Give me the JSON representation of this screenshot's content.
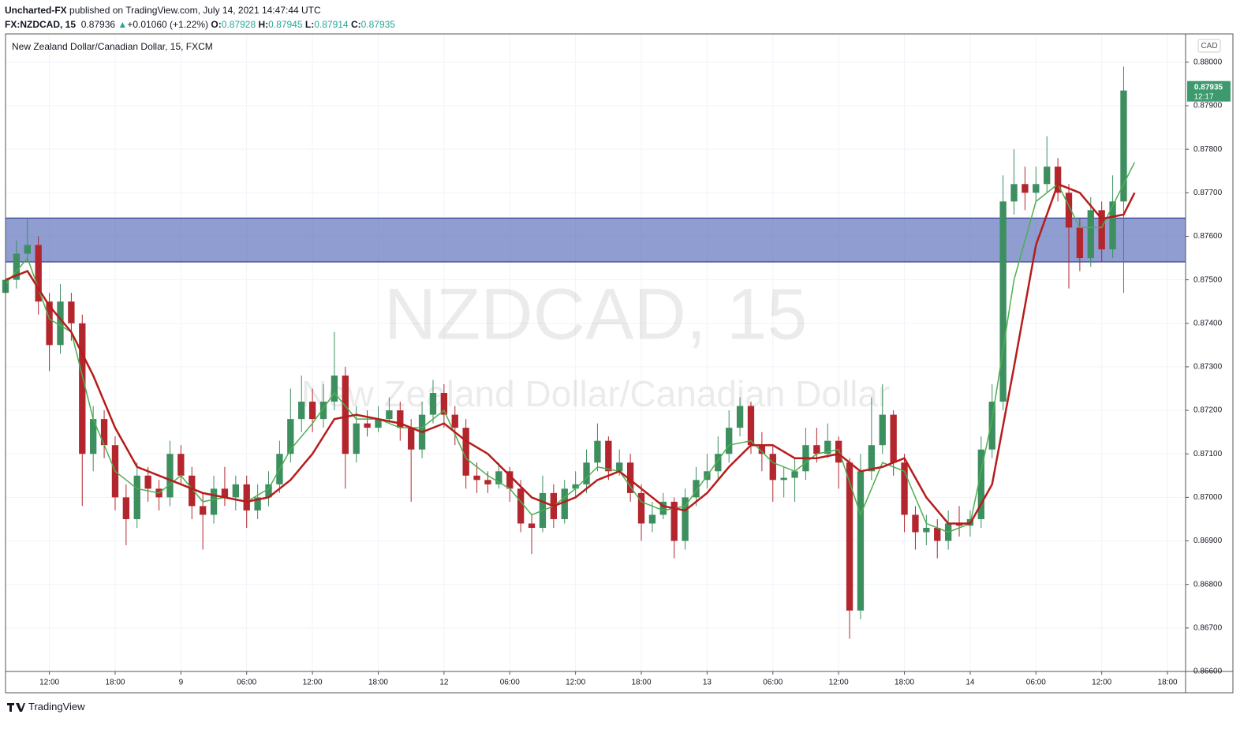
{
  "header": {
    "author": "Uncharted-FX",
    "published": " published on TradingView.com, July 14, 2021 14:47:44 UTC",
    "symbol": "FX:NZDCAD, 15",
    "last": "0.87936",
    "change": "+0.01060 (+1.22%)",
    "o_label": "O:",
    "open": "0.87928",
    "h_label": "H:",
    "high": "0.87945",
    "l_label": "L:",
    "low": "0.87914",
    "c_label": "C:",
    "close": "0.87935"
  },
  "footer": {
    "brand": "TradingView"
  },
  "chart_data": {
    "type": "candlestick",
    "title": "New Zealand Dollar/Canadian Dollar, 15, FXCM",
    "watermark": "NZDCAD, 15",
    "watermark_name": "New Zealand Dollar/Canadian Dollar",
    "currency": "CAD",
    "countdown": "12:17",
    "up_color": "#3d8f5f",
    "down_color": "#b3262d",
    "grid": true,
    "xlim": [
      -16,
      91.65
    ],
    "ylim": [
      0.866,
      0.88065
    ],
    "xticks": [
      {
        "value": -12,
        "label": "12:00"
      },
      {
        "value": -6,
        "label": "18:00"
      },
      {
        "value": 0,
        "label": "9"
      },
      {
        "value": 6,
        "label": "06:00"
      },
      {
        "value": 12,
        "label": "12:00"
      },
      {
        "value": 18,
        "label": "18:00"
      },
      {
        "value": 24,
        "label": "12"
      },
      {
        "value": 30,
        "label": "06:00"
      },
      {
        "value": 36,
        "label": "12:00"
      },
      {
        "value": 42,
        "label": "18:00"
      },
      {
        "value": 48,
        "label": "13"
      },
      {
        "value": 54,
        "label": "06:00"
      },
      {
        "value": 60,
        "label": "12:00"
      },
      {
        "value": 66,
        "label": "18:00"
      },
      {
        "value": 72,
        "label": "14"
      },
      {
        "value": 78,
        "label": "06:00"
      },
      {
        "value": 84,
        "label": "12:00"
      },
      {
        "value": 90,
        "label": "18:00"
      }
    ],
    "yticks": [
      {
        "value": 0.88,
        "label": "0.88000"
      },
      {
        "value": 0.879,
        "label": "0.87900"
      },
      {
        "value": 0.878,
        "label": "0.87800"
      },
      {
        "value": 0.877,
        "label": "0.87700"
      },
      {
        "value": 0.876,
        "label": "0.87600"
      },
      {
        "value": 0.875,
        "label": "0.87500"
      },
      {
        "value": 0.874,
        "label": "0.87400"
      },
      {
        "value": 0.873,
        "label": "0.87300"
      },
      {
        "value": 0.872,
        "label": "0.87200"
      },
      {
        "value": 0.871,
        "label": "0.87100"
      },
      {
        "value": 0.87,
        "label": "0.87000"
      },
      {
        "value": 0.869,
        "label": "0.86900"
      },
      {
        "value": 0.868,
        "label": "0.86800"
      },
      {
        "value": 0.867,
        "label": "0.86700"
      },
      {
        "value": 0.866,
        "label": "0.86600"
      }
    ],
    "zone": {
      "from": 0.87541,
      "to": 0.87642,
      "color": "#4a61b5"
    },
    "candles": [
      [
        -16,
        0.8747,
        0.8753,
        0.8744,
        0.875
      ],
      [
        -15,
        0.875,
        0.8759,
        0.8748,
        0.8756
      ],
      [
        -14,
        0.8756,
        0.87642,
        0.8754,
        0.8758
      ],
      [
        -13,
        0.8758,
        0.876,
        0.8742,
        0.8745
      ],
      [
        -12,
        0.8745,
        0.8747,
        0.8729,
        0.8735
      ],
      [
        -11,
        0.8735,
        0.8749,
        0.8733,
        0.8745
      ],
      [
        -10,
        0.8745,
        0.8747,
        0.8736,
        0.874
      ],
      [
        -9,
        0.874,
        0.8742,
        0.8698,
        0.871
      ],
      [
        -8,
        0.871,
        0.8721,
        0.8706,
        0.8718
      ],
      [
        -7,
        0.8718,
        0.872,
        0.8709,
        0.8712
      ],
      [
        -6,
        0.8712,
        0.8714,
        0.8697,
        0.87
      ],
      [
        -5,
        0.87,
        0.8703,
        0.8689,
        0.8695
      ],
      [
        -4,
        0.8695,
        0.8708,
        0.8693,
        0.8705
      ],
      [
        -3,
        0.8705,
        0.8707,
        0.8699,
        0.8702
      ],
      [
        -2,
        0.8702,
        0.8704,
        0.8697,
        0.87
      ],
      [
        -1,
        0.87,
        0.8713,
        0.8698,
        0.871
      ],
      [
        0,
        0.871,
        0.8712,
        0.8703,
        0.8705
      ],
      [
        1,
        0.8705,
        0.8707,
        0.8695,
        0.8698
      ],
      [
        2,
        0.8698,
        0.8701,
        0.8688,
        0.8696
      ],
      [
        3,
        0.8696,
        0.8705,
        0.8694,
        0.8702
      ],
      [
        4,
        0.8702,
        0.8707,
        0.8698,
        0.87
      ],
      [
        5,
        0.87,
        0.8705,
        0.8697,
        0.8703
      ],
      [
        6,
        0.8703,
        0.8705,
        0.8693,
        0.8697
      ],
      [
        7,
        0.8697,
        0.8703,
        0.8695,
        0.87
      ],
      [
        8,
        0.87,
        0.8706,
        0.8698,
        0.8703
      ],
      [
        9,
        0.8703,
        0.8713,
        0.8701,
        0.871
      ],
      [
        10,
        0.871,
        0.8725,
        0.8708,
        0.8718
      ],
      [
        11,
        0.8718,
        0.8728,
        0.8715,
        0.8722
      ],
      [
        12,
        0.8722,
        0.8725,
        0.8715,
        0.8718
      ],
      [
        13,
        0.8718,
        0.8726,
        0.8716,
        0.8722
      ],
      [
        14,
        0.8722,
        0.8738,
        0.872,
        0.8728
      ],
      [
        15,
        0.8728,
        0.873,
        0.8702,
        0.871
      ],
      [
        16,
        0.871,
        0.8721,
        0.8708,
        0.8717
      ],
      [
        17,
        0.8717,
        0.872,
        0.8714,
        0.8716
      ],
      [
        18,
        0.8716,
        0.8721,
        0.8715,
        0.8718
      ],
      [
        19,
        0.8718,
        0.8723,
        0.8717,
        0.872
      ],
      [
        20,
        0.872,
        0.8722,
        0.8713,
        0.8716
      ],
      [
        21,
        0.8716,
        0.8718,
        0.8699,
        0.8711
      ],
      [
        22,
        0.8711,
        0.8722,
        0.8709,
        0.8719
      ],
      [
        23,
        0.8719,
        0.8727,
        0.8717,
        0.8724
      ],
      [
        24,
        0.8724,
        0.8726,
        0.8716,
        0.8719
      ],
      [
        25,
        0.8719,
        0.8721,
        0.8712,
        0.8716
      ],
      [
        26,
        0.8716,
        0.8718,
        0.8702,
        0.8705
      ],
      [
        27,
        0.8705,
        0.8708,
        0.8701,
        0.8704
      ],
      [
        28,
        0.8704,
        0.8706,
        0.8701,
        0.8703
      ],
      [
        29,
        0.8703,
        0.8708,
        0.8702,
        0.8706
      ],
      [
        30,
        0.8706,
        0.8707,
        0.8699,
        0.8702
      ],
      [
        31,
        0.8702,
        0.8704,
        0.8692,
        0.8694
      ],
      [
        32,
        0.8694,
        0.8696,
        0.8687,
        0.8693
      ],
      [
        33,
        0.8693,
        0.8705,
        0.8692,
        0.8701
      ],
      [
        34,
        0.8701,
        0.8703,
        0.8693,
        0.8695
      ],
      [
        35,
        0.8695,
        0.8704,
        0.8694,
        0.8702
      ],
      [
        36,
        0.8702,
        0.8706,
        0.87,
        0.8703
      ],
      [
        37,
        0.8703,
        0.8711,
        0.8701,
        0.8708
      ],
      [
        38,
        0.8708,
        0.8717,
        0.8706,
        0.8713
      ],
      [
        39,
        0.8713,
        0.8714,
        0.8704,
        0.8706
      ],
      [
        40,
        0.8706,
        0.8711,
        0.8705,
        0.8708
      ],
      [
        41,
        0.8708,
        0.871,
        0.8699,
        0.8701
      ],
      [
        42,
        0.8701,
        0.8703,
        0.869,
        0.8694
      ],
      [
        43,
        0.8694,
        0.8699,
        0.8692,
        0.8696
      ],
      [
        44,
        0.8696,
        0.8701,
        0.8695,
        0.8699
      ],
      [
        45,
        0.8699,
        0.87,
        0.8686,
        0.869
      ],
      [
        46,
        0.869,
        0.8702,
        0.8688,
        0.87
      ],
      [
        47,
        0.87,
        0.8707,
        0.8698,
        0.8704
      ],
      [
        48,
        0.8704,
        0.871,
        0.8702,
        0.8706
      ],
      [
        49,
        0.8706,
        0.8714,
        0.8704,
        0.871
      ],
      [
        50,
        0.871,
        0.872,
        0.8708,
        0.8716
      ],
      [
        51,
        0.8716,
        0.8723,
        0.8714,
        0.8721
      ],
      [
        52,
        0.8721,
        0.8722,
        0.871,
        0.8712
      ],
      [
        53,
        0.8712,
        0.8715,
        0.8706,
        0.871
      ],
      [
        54,
        0.871,
        0.8712,
        0.8699,
        0.8704
      ],
      [
        55,
        0.8704,
        0.8707,
        0.87,
        0.87045
      ],
      [
        56,
        0.87045,
        0.8709,
        0.8699,
        0.8706
      ],
      [
        57,
        0.8706,
        0.8716,
        0.8704,
        0.8712
      ],
      [
        58,
        0.8712,
        0.8716,
        0.8708,
        0.871
      ],
      [
        59,
        0.871,
        0.8717,
        0.8709,
        0.8713
      ],
      [
        60,
        0.8713,
        0.8714,
        0.8702,
        0.8708
      ],
      [
        61,
        0.8708,
        0.8709,
        0.86675,
        0.8674
      ],
      [
        62,
        0.8674,
        0.871,
        0.8672,
        0.8706
      ],
      [
        63,
        0.8706,
        0.8723,
        0.8704,
        0.8712
      ],
      [
        64,
        0.8712,
        0.8726,
        0.871,
        0.8719
      ],
      [
        65,
        0.8719,
        0.872,
        0.8705,
        0.8708
      ],
      [
        66,
        0.8708,
        0.871,
        0.8692,
        0.8696
      ],
      [
        67,
        0.8696,
        0.8698,
        0.8688,
        0.8692
      ],
      [
        68,
        0.8692,
        0.8696,
        0.8689,
        0.8693
      ],
      [
        69,
        0.8693,
        0.8695,
        0.8686,
        0.869
      ],
      [
        70,
        0.869,
        0.8697,
        0.8688,
        0.8694
      ],
      [
        71,
        0.8694,
        0.8698,
        0.8691,
        0.86935
      ],
      [
        72,
        0.86935,
        0.8697,
        0.8691,
        0.8695
      ],
      [
        73,
        0.8695,
        0.8714,
        0.8693,
        0.8711
      ],
      [
        74,
        0.8711,
        0.8726,
        0.8709,
        0.8722
      ],
      [
        75,
        0.8722,
        0.8774,
        0.872,
        0.8768
      ],
      [
        76,
        0.8768,
        0.878,
        0.8765,
        0.8772
      ],
      [
        77,
        0.8772,
        0.8776,
        0.8766,
        0.877
      ],
      [
        78,
        0.877,
        0.8776,
        0.8768,
        0.8772
      ],
      [
        79,
        0.8772,
        0.8783,
        0.877,
        0.8776
      ],
      [
        80,
        0.8776,
        0.8778,
        0.8768,
        0.877
      ],
      [
        81,
        0.877,
        0.8772,
        0.8748,
        0.8762
      ],
      [
        82,
        0.8762,
        0.8764,
        0.8752,
        0.8755
      ],
      [
        83,
        0.8755,
        0.8769,
        0.8753,
        0.8766
      ],
      [
        84,
        0.8766,
        0.8768,
        0.8754,
        0.8757
      ],
      [
        85,
        0.8757,
        0.8774,
        0.8755,
        0.8768
      ],
      [
        86,
        0.8768,
        0.8799,
        0.8747,
        0.87935
      ]
    ],
    "series": [
      {
        "name": "MA fast",
        "color": "#4caf50",
        "x": [
          -16,
          -14,
          -12,
          -10,
          -8,
          -6,
          -4,
          -2,
          0,
          2,
          4,
          6,
          8,
          10,
          12,
          14,
          16,
          18,
          20,
          22,
          24,
          26,
          28,
          30,
          32,
          34,
          36,
          38,
          40,
          42,
          44,
          46,
          48,
          50,
          52,
          54,
          56,
          58,
          60,
          62,
          64,
          66,
          68,
          70,
          72,
          74,
          76,
          78,
          80,
          82,
          84,
          86,
          87
        ],
        "values": [
          0.8749,
          0.8755,
          0.8741,
          0.8738,
          0.8718,
          0.8706,
          0.8702,
          0.8701,
          0.8705,
          0.8699,
          0.87,
          0.8699,
          0.8702,
          0.8711,
          0.8717,
          0.8724,
          0.8718,
          0.8718,
          0.8716,
          0.8716,
          0.872,
          0.8709,
          0.8705,
          0.8702,
          0.8696,
          0.8698,
          0.8702,
          0.8707,
          0.8706,
          0.8699,
          0.8697,
          0.8698,
          0.8705,
          0.8712,
          0.8713,
          0.8708,
          0.8706,
          0.871,
          0.8711,
          0.8696,
          0.8708,
          0.8706,
          0.8694,
          0.8692,
          0.8694,
          0.8718,
          0.875,
          0.8768,
          0.8772,
          0.8762,
          0.8762,
          0.8772,
          0.8777
        ]
      },
      {
        "name": "MA slow",
        "color": "#b71c1c",
        "x": [
          -16,
          -14,
          -12,
          -10,
          -8,
          -6,
          -4,
          -2,
          0,
          2,
          4,
          6,
          8,
          10,
          12,
          14,
          16,
          18,
          20,
          22,
          24,
          26,
          28,
          30,
          32,
          34,
          36,
          38,
          40,
          42,
          44,
          46,
          48,
          50,
          52,
          54,
          56,
          58,
          60,
          62,
          64,
          66,
          68,
          70,
          72,
          74,
          76,
          78,
          80,
          82,
          84,
          86,
          87
        ],
        "values": [
          0.875,
          0.8752,
          0.8744,
          0.8738,
          0.8728,
          0.8716,
          0.8707,
          0.8705,
          0.8703,
          0.8701,
          0.87,
          0.8699,
          0.87,
          0.8704,
          0.871,
          0.8718,
          0.8719,
          0.8718,
          0.8717,
          0.8715,
          0.8717,
          0.8713,
          0.871,
          0.8705,
          0.87,
          0.8698,
          0.87,
          0.8704,
          0.8706,
          0.8702,
          0.8698,
          0.8697,
          0.8701,
          0.8707,
          0.8712,
          0.8712,
          0.8709,
          0.8709,
          0.871,
          0.8706,
          0.8707,
          0.8709,
          0.87,
          0.8694,
          0.8694,
          0.8703,
          0.873,
          0.8758,
          0.8772,
          0.877,
          0.8764,
          0.8765,
          0.877
        ]
      }
    ]
  }
}
